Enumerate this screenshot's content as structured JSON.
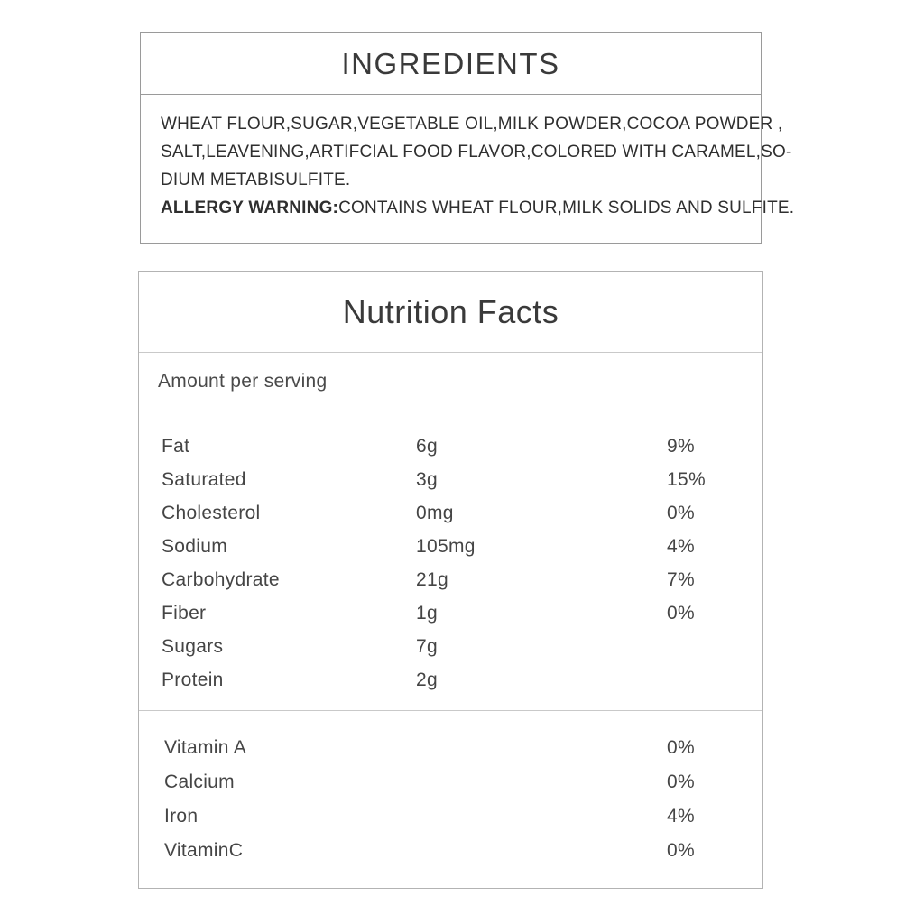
{
  "ingredients": {
    "title": "INGREDIENTS",
    "lines": [
      "WHEAT FLOUR,SUGAR,VEGETABLE OIL,MILK POWDER,COCOA POWDER ,",
      "SALT,LEAVENING,ARTIFCIAL FOOD FLAVOR,COLORED WITH CARAMEL,SO-",
      "DIUM METABISULFITE."
    ],
    "allergy_label": "ALLERGY WARNING:",
    "allergy_text": "CONTAINS WHEAT FLOUR,MILK SOLIDS AND SULFITE."
  },
  "nutrition": {
    "title": "Nutrition Facts",
    "serving_header": "Amount per serving",
    "rows": [
      {
        "label": "Fat",
        "amount": "6g",
        "dv": "9%"
      },
      {
        "label": "Saturated",
        "amount": "3g",
        "dv": "15%"
      },
      {
        "label": "Cholesterol",
        "amount": "0mg",
        "dv": "0%"
      },
      {
        "label": "Sodium",
        "amount": "105mg",
        "dv": "4%"
      },
      {
        "label": "Carbohydrate",
        "amount": "21g",
        "dv": "7%"
      },
      {
        "label": "Fiber",
        "amount": "1g",
        "dv": "0%"
      },
      {
        "label": "Sugars",
        "amount": "7g",
        "dv": ""
      },
      {
        "label": "Protein",
        "amount": "2g",
        "dv": ""
      }
    ],
    "vitamins": [
      {
        "label": "Vitamin A",
        "dv": "0%"
      },
      {
        "label": "Calcium",
        "dv": "0%"
      },
      {
        "label": "Iron",
        "dv": "4%"
      },
      {
        "label": "VitaminC",
        "dv": "0%"
      }
    ]
  },
  "colors": {
    "text": "#3a3a3a",
    "ingredients_border": "#9a9a9a",
    "nutrition_border": "#b3b3b3",
    "divider": "#c9c9c9",
    "background": "#ffffff"
  }
}
